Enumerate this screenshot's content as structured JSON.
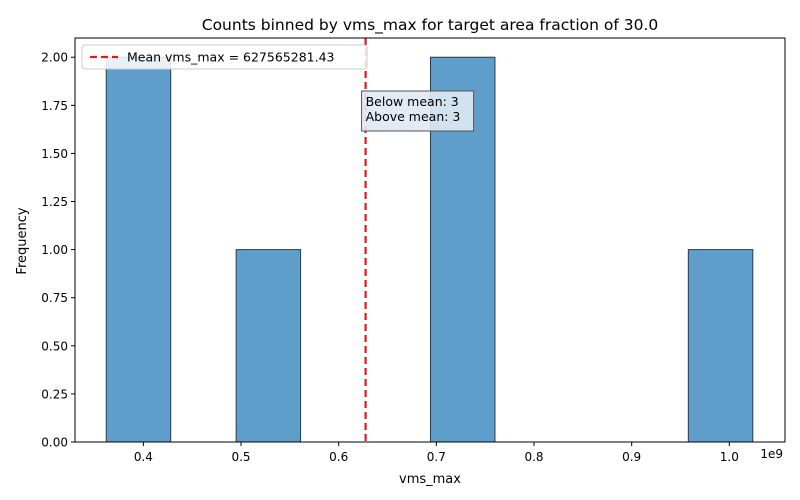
{
  "chart_data": {
    "type": "bar",
    "title": "Counts binned by vms_max for target area fraction of 30.0",
    "xlabel": "vms_max",
    "ylabel": "Frequency",
    "x_offset_label": "1e9",
    "xlim": [
      330000000,
      1057000000
    ],
    "ylim": [
      0,
      2.1
    ],
    "x_ticks": [
      0.4,
      0.5,
      0.6,
      0.7,
      0.8,
      0.9,
      1.0
    ],
    "x_tick_labels": [
      "0.4",
      "0.5",
      "0.6",
      "0.7",
      "0.8",
      "0.9",
      "1.0"
    ],
    "y_ticks": [
      0,
      0.25,
      0.5,
      0.75,
      1.0,
      1.25,
      1.5,
      1.75,
      2.0
    ],
    "y_tick_labels": [
      "0.00",
      "0.25",
      "0.50",
      "0.75",
      "1.00",
      "1.25",
      "1.50",
      "1.75",
      "2.00"
    ],
    "bins": [
      {
        "start": 362000000,
        "end": 428000000,
        "count": 2
      },
      {
        "start": 495000000,
        "end": 561000000,
        "count": 1
      },
      {
        "start": 694000000,
        "end": 760000000,
        "count": 2
      },
      {
        "start": 958000000,
        "end": 1024000000,
        "count": 1
      }
    ],
    "mean": 627565281.43,
    "legend": [
      {
        "label": "Mean vms_max = 627565281.43",
        "style": "dashed",
        "color": "#e31a1c"
      }
    ],
    "legend_placement": "top-left",
    "annotation": {
      "lines": [
        "Below mean: 3",
        "Above mean: 3"
      ]
    },
    "colors": {
      "bar_fill": "#5f9ecb",
      "bar_edge": "#2b3a44",
      "mean_line": "#e31a1c"
    }
  }
}
